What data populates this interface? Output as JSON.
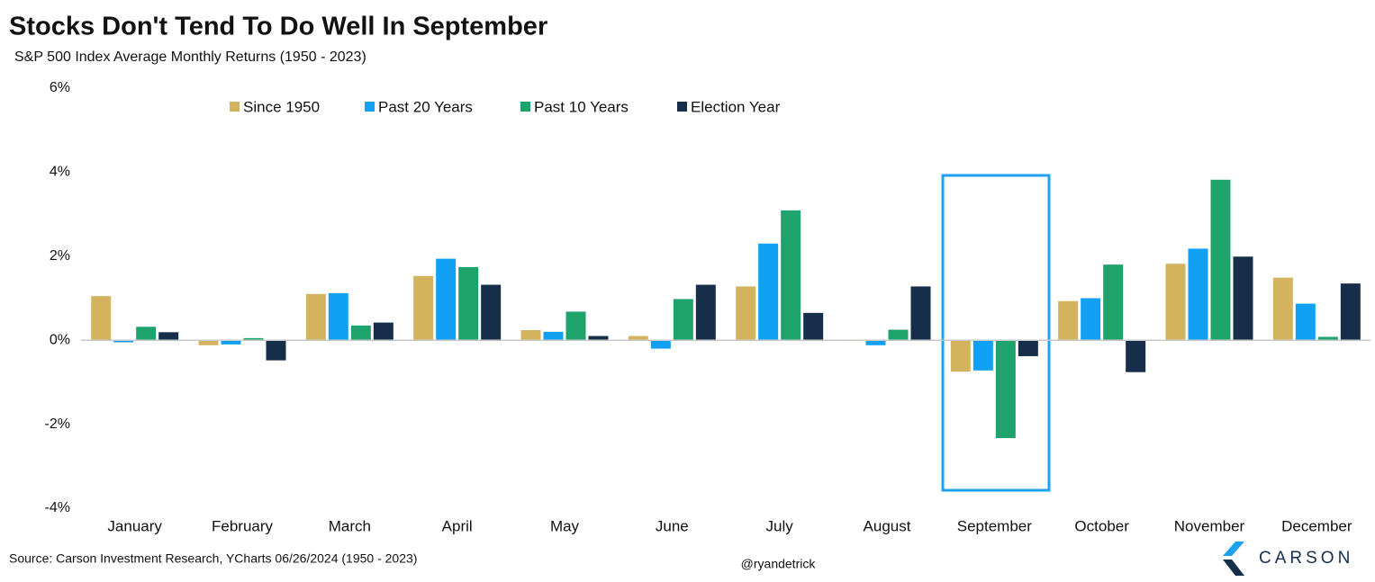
{
  "chart_data": {
    "type": "bar",
    "title": "Stocks Don't Tend To Do Well In September",
    "subtitle": "S&P 500 Index Average Monthly Returns (1950 - 2023)",
    "categories": [
      "January",
      "February",
      "March",
      "April",
      "May",
      "June",
      "July",
      "August",
      "September",
      "October",
      "November",
      "December"
    ],
    "series": [
      {
        "name": "Since 1950",
        "color": "#d4b35f",
        "values": [
          1.05,
          -0.12,
          1.1,
          1.53,
          0.24,
          0.1,
          1.28,
          -0.02,
          -0.75,
          0.93,
          1.82,
          1.49
        ]
      },
      {
        "name": "Past 20 Years",
        "color": "#12a0f5",
        "values": [
          -0.05,
          -0.1,
          1.12,
          1.94,
          0.2,
          -0.2,
          2.3,
          -0.12,
          -0.72,
          1.0,
          2.18,
          0.87
        ]
      },
      {
        "name": "Past 10 Years",
        "color": "#1fa36c",
        "values": [
          0.32,
          0.05,
          0.35,
          1.74,
          0.68,
          0.98,
          3.09,
          0.25,
          -2.33,
          1.8,
          3.82,
          0.08
        ]
      },
      {
        "name": "Election Year",
        "color": "#172e4a",
        "values": [
          0.19,
          -0.48,
          0.42,
          1.32,
          0.1,
          1.32,
          0.65,
          1.28,
          -0.38,
          -0.76,
          1.99,
          1.35
        ]
      }
    ],
    "ylim": [
      -4,
      6
    ],
    "yticks": [
      {
        "value": -4,
        "label": "-4%"
      },
      {
        "value": -2,
        "label": "-2%"
      },
      {
        "value": 0,
        "label": "0%"
      },
      {
        "value": 2,
        "label": "2%"
      },
      {
        "value": 4,
        "label": "4%"
      },
      {
        "value": 6,
        "label": "6%"
      }
    ],
    "grid": false,
    "legend": "top",
    "source": "Source: Carson Investment Research, YCharts 06/26/2024 (1950 - 2023)",
    "credit": "@ryandetrick",
    "logo": "CARSON"
  }
}
